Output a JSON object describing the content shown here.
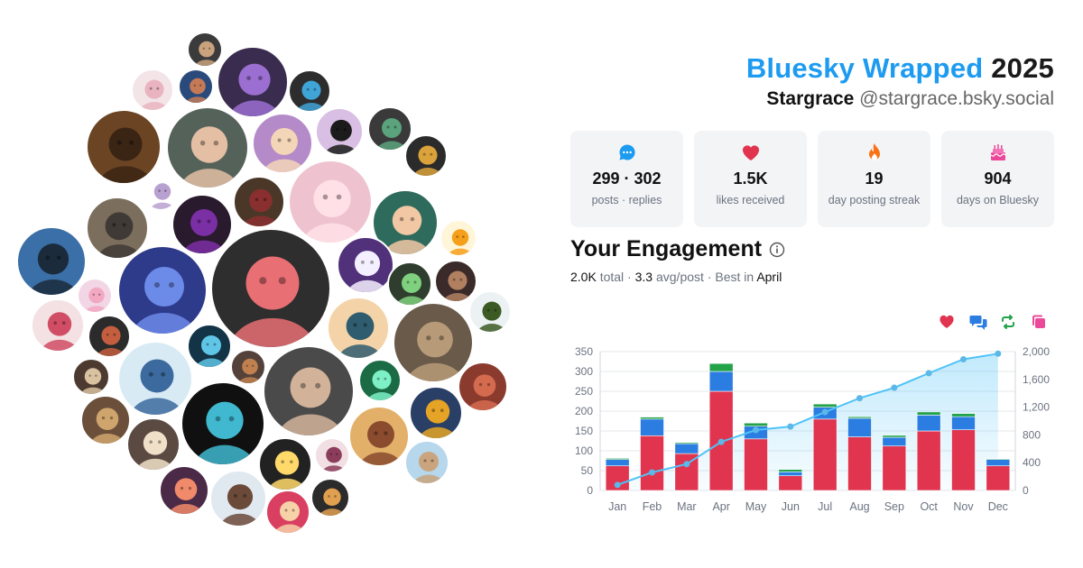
{
  "header": {
    "brand": "Bluesky Wrapped",
    "year": "2025",
    "display_name": "Stargrace",
    "handle": "@stargrace.bsky.social"
  },
  "stats": [
    {
      "value": "299 · 302",
      "label": "posts · replies",
      "icon": "chat-bubble-icon",
      "color": "#1d9bf0"
    },
    {
      "value": "1.5K",
      "label": "likes received",
      "icon": "heart-icon",
      "color": "#e0344f"
    },
    {
      "value": "19",
      "label": "day posting streak",
      "icon": "flame-icon",
      "color": "#f97316"
    },
    {
      "value": "904",
      "label": "days on Bluesky",
      "icon": "cake-icon",
      "color": "#ec4899"
    }
  ],
  "engagement": {
    "title": "Your Engagement",
    "total_value": "2.0K",
    "total_word": "total",
    "sep1": " · ",
    "avg_value": "3.3",
    "avg_word": "avg/post",
    "sep2": " · ",
    "best_prefix": "Best in",
    "best_month": "April"
  },
  "legend": [
    {
      "icon": "heart-icon",
      "color": "#e0344f"
    },
    {
      "icon": "reply-bubbles-icon",
      "color": "#2b7de1"
    },
    {
      "icon": "repost-icon",
      "color": "#22a34a"
    },
    {
      "icon": "quote-icon",
      "color": "#ec4899"
    }
  ],
  "chart_data": {
    "type": "bar",
    "stacked": true,
    "categories": [
      "Jan",
      "Feb",
      "Mar",
      "Apr",
      "May",
      "Jun",
      "Jul",
      "Aug",
      "Sep",
      "Oct",
      "Nov",
      "Dec"
    ],
    "series": [
      {
        "color": "#e0344f",
        "values": [
          62,
          138,
          93,
          250,
          130,
          37,
          180,
          135,
          112,
          150,
          153,
          62
        ]
      },
      {
        "color": "#2b7de1",
        "values": [
          16,
          42,
          25,
          50,
          32,
          10,
          30,
          47,
          22,
          40,
          33,
          16
        ]
      },
      {
        "color": "#22a34a",
        "values": [
          3,
          5,
          3,
          20,
          8,
          6,
          8,
          4,
          5,
          8,
          8,
          2
        ]
      },
      {
        "color": "#ec4899",
        "values": [
          0,
          0,
          0,
          1,
          0,
          0,
          0,
          0,
          0,
          0,
          0,
          0
        ]
      }
    ],
    "cumulative": {
      "color": "#4fc3f7",
      "values": [
        80,
        260,
        380,
        700,
        870,
        920,
        1130,
        1330,
        1480,
        1690,
        1890,
        1970
      ]
    },
    "ylim_left": [
      0,
      350
    ],
    "yticks_left": [
      0,
      50,
      100,
      150,
      200,
      250,
      300,
      350
    ],
    "ylim_right": [
      0,
      2000
    ],
    "yticks_right": [
      "0",
      "400",
      "800",
      "1,200",
      "1,600",
      "2,000"
    ],
    "grid": true
  },
  "avatars": [
    {
      "bg": "#3b3b3b",
      "fg": "#c9a27e"
    },
    {
      "bg": "#f3e4e8",
      "fg": "#e9b4c0"
    },
    {
      "bg": "#2a4a7c",
      "fg": "#c47a57"
    },
    {
      "bg": "#3a2c4e",
      "fg": "#9b6fd1"
    },
    {
      "bg": "#2d2d2d",
      "fg": "#3fa4d6"
    },
    {
      "bg": "#6b4423",
      "fg": "#3a2414"
    },
    {
      "bg": "#55625a",
      "fg": "#e4bfa4"
    },
    {
      "bg": "#b58ac9",
      "fg": "#f3d6b8"
    },
    {
      "bg": "#d8bfe3",
      "fg": "#1b1b1b"
    },
    {
      "bg": "#3a3a3a",
      "fg": "#5aa37c"
    },
    {
      "bg": "#2b2b2b",
      "fg": "#d9a23b"
    },
    {
      "bg": "#ffffff",
      "fg": "#b8a0d0"
    },
    {
      "bg": "#4a3728",
      "fg": "#8a2f2f"
    },
    {
      "bg": "#eec3cf",
      "fg": "#ffe0e6"
    },
    {
      "bg": "#7c6e5c",
      "fg": "#3f3a36"
    },
    {
      "bg": "#2a1a2d",
      "fg": "#7b2fa5"
    },
    {
      "bg": "#2e6b5c",
      "fg": "#f1c7a4"
    },
    {
      "bg": "#fff6d9",
      "fg": "#f59f1a"
    },
    {
      "bg": "#3b6fa8",
      "fg": "#1b2b3b"
    },
    {
      "bg": "#50317a",
      "fg": "#f4f0ff"
    },
    {
      "bg": "#2e3d2d",
      "fg": "#7fd17f"
    },
    {
      "bg": "#3b2a2a",
      "fg": "#b08060"
    },
    {
      "bg": "#ecf2f3",
      "fg": "#3c5a24"
    },
    {
      "bg": "#f2d6e6",
      "fg": "#f3a8c2"
    },
    {
      "bg": "#2e3a8a",
      "fg": "#6c8ae8"
    },
    {
      "bg": "#2e2e2e",
      "fg": "#e86f73"
    },
    {
      "bg": "#f4e1e3",
      "fg": "#d04d65"
    },
    {
      "bg": "#2b2b2b",
      "fg": "#c45e3f"
    },
    {
      "bg": "#f4d3a8",
      "fg": "#2f5c6e"
    },
    {
      "bg": "#6a5a4a",
      "fg": "#b79b78"
    },
    {
      "bg": "#123446",
      "fg": "#60c6e8"
    },
    {
      "bg": "#54423a",
      "fg": "#c08050"
    },
    {
      "bg": "#4c3a30",
      "fg": "#d9c2a0"
    },
    {
      "bg": "#d8ebf5",
      "fg": "#3c6a9e"
    },
    {
      "bg": "#4a4a4a",
      "fg": "#d2b39a"
    },
    {
      "bg": "#1b6b45",
      "fg": "#7df0c5"
    },
    {
      "bg": "#2a3f66",
      "fg": "#e5a425"
    },
    {
      "bg": "#8b3a2e",
      "fg": "#d46b4f"
    },
    {
      "bg": "#6b4f3a",
      "fg": "#cfa56d"
    },
    {
      "bg": "#e3b06a",
      "fg": "#8a4b2e"
    },
    {
      "bg": "#101010",
      "fg": "#3fb8d0"
    },
    {
      "bg": "#5a4a42",
      "fg": "#f0e0c8"
    },
    {
      "bg": "#222222",
      "fg": "#ffd96a"
    },
    {
      "bg": "#f1dfe4",
      "fg": "#8c3d5b"
    },
    {
      "bg": "#b6d7ec",
      "fg": "#c9a47e"
    },
    {
      "bg": "#4b2a48",
      "fg": "#f08a6a"
    },
    {
      "bg": "#e0e8f0",
      "fg": "#6b4a3a"
    },
    {
      "bg": "#d93f60",
      "fg": "#f7d1a8"
    },
    {
      "bg": "#2b2b2b",
      "fg": "#e0a050"
    },
    {
      "bg": "#d2dae6",
      "fg": "#3a4a82"
    },
    {
      "bg": "#222222",
      "fg": "#3a8bd8"
    },
    {
      "bg": "#4f7a3a",
      "fg": "#a8c878"
    },
    {
      "bg": "#f2e4e8",
      "fg": "#3a2a2a"
    },
    {
      "bg": "#2a4468",
      "fg": "#e8a020"
    },
    {
      "bg": "#f3e8d8",
      "fg": "#5a4a7a"
    },
    {
      "bg": "#6a1e2a",
      "fg": "#e0a8c0"
    },
    {
      "bg": "#202020",
      "fg": "#7f3a28"
    },
    {
      "bg": "#e0d8f2",
      "fg": "#6a4ab0"
    }
  ]
}
